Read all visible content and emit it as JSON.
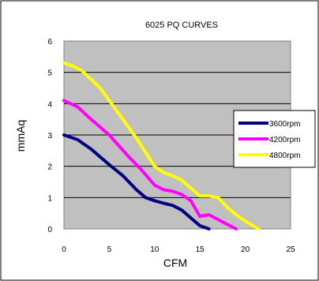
{
  "chart_data": {
    "type": "line",
    "title": "6025 PQ CURVES",
    "xlabel": "CFM",
    "ylabel": "mmAq",
    "xlim": [
      0,
      25
    ],
    "ylim": [
      0,
      6
    ],
    "x_ticks": [
      "0",
      "5",
      "10",
      "15",
      "20",
      "25"
    ],
    "y_ticks": [
      "0",
      "1",
      "2",
      "3",
      "4",
      "5",
      "6"
    ],
    "grid": "horizontal",
    "plot_background": "#c0c0c0",
    "legend_position": "right",
    "series": [
      {
        "name": "3600rpm",
        "color": "#000080",
        "x": [
          0,
          1.5,
          3,
          5,
          6.5,
          8,
          9,
          10,
          11,
          12,
          13,
          14,
          15,
          16
        ],
        "y": [
          3.0,
          2.85,
          2.55,
          2.05,
          1.7,
          1.25,
          1.0,
          0.9,
          0.82,
          0.75,
          0.6,
          0.35,
          0.1,
          0.0
        ]
      },
      {
        "name": "4200rpm",
        "color": "#ff00ff",
        "x": [
          0,
          1.5,
          3,
          5,
          7,
          8.5,
          10,
          11,
          12,
          13,
          14,
          15,
          16,
          17,
          18,
          19
        ],
        "y": [
          4.1,
          3.9,
          3.5,
          3.0,
          2.35,
          1.9,
          1.4,
          1.25,
          1.2,
          1.1,
          0.9,
          0.4,
          0.45,
          0.3,
          0.15,
          0.0
        ]
      },
      {
        "name": "4800rpm",
        "color": "#ffff00",
        "x": [
          0,
          1,
          2,
          4,
          6,
          8,
          10,
          11,
          12,
          13,
          14,
          15,
          16,
          17,
          18,
          19,
          20,
          21,
          21.5
        ],
        "y": [
          5.3,
          5.2,
          5.05,
          4.5,
          3.7,
          2.9,
          2.0,
          1.8,
          1.7,
          1.55,
          1.3,
          1.05,
          1.05,
          1.0,
          0.7,
          0.45,
          0.25,
          0.08,
          0.0
        ]
      }
    ]
  }
}
